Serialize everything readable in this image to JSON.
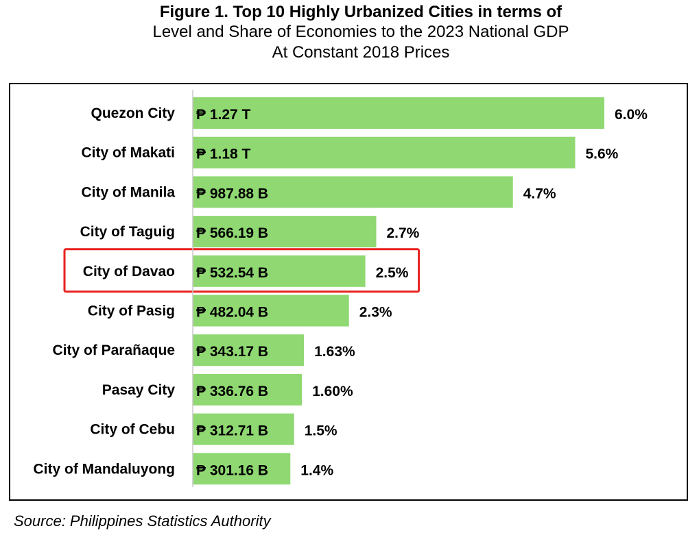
{
  "title": {
    "main": "Figure 1. Top 10 Highly Urbanized Cities in terms of",
    "line2": "Level and Share of Economies to the 2023 National GDP",
    "line3": "At Constant 2018 Prices"
  },
  "source": "Source: Philippines Statistics Authority",
  "colors": {
    "bar": "#8fd872",
    "highlight": "#e8211e",
    "axis": "#c8c8c8"
  },
  "chart_data": {
    "type": "bar",
    "orientation": "horizontal",
    "unit": "PHP billions",
    "categories": [
      "Quezon City",
      "City of Makati",
      "City of Manila",
      "City of Taguig",
      "City of Davao",
      "City of Pasig",
      "City of Parañaque",
      "Pasay City",
      "City of Cebu",
      "City of Mandaluyong"
    ],
    "values": [
      1270,
      1180,
      987.88,
      566.19,
      532.54,
      482.04,
      343.17,
      336.76,
      312.71,
      301.16
    ],
    "value_labels": [
      "₱ 1.27 T",
      "₱ 1.18 T",
      "₱ 987.88 B",
      "₱ 566.19 B",
      "₱ 532.54 B",
      "₱ 482.04 B",
      "₱ 343.17 B",
      "₱ 336.76 B",
      "₱ 312.71 B",
      "₱ 301.16 B"
    ],
    "share_labels": [
      "6.0%",
      "5.6%",
      "4.7%",
      "2.7%",
      "2.5%",
      "2.3%",
      "1.63%",
      "1.60%",
      "1.5%",
      "1.4%"
    ],
    "highlighted_category": "City of Davao",
    "xlim": [
      0,
      1270
    ],
    "grid": false,
    "legend": "none"
  }
}
